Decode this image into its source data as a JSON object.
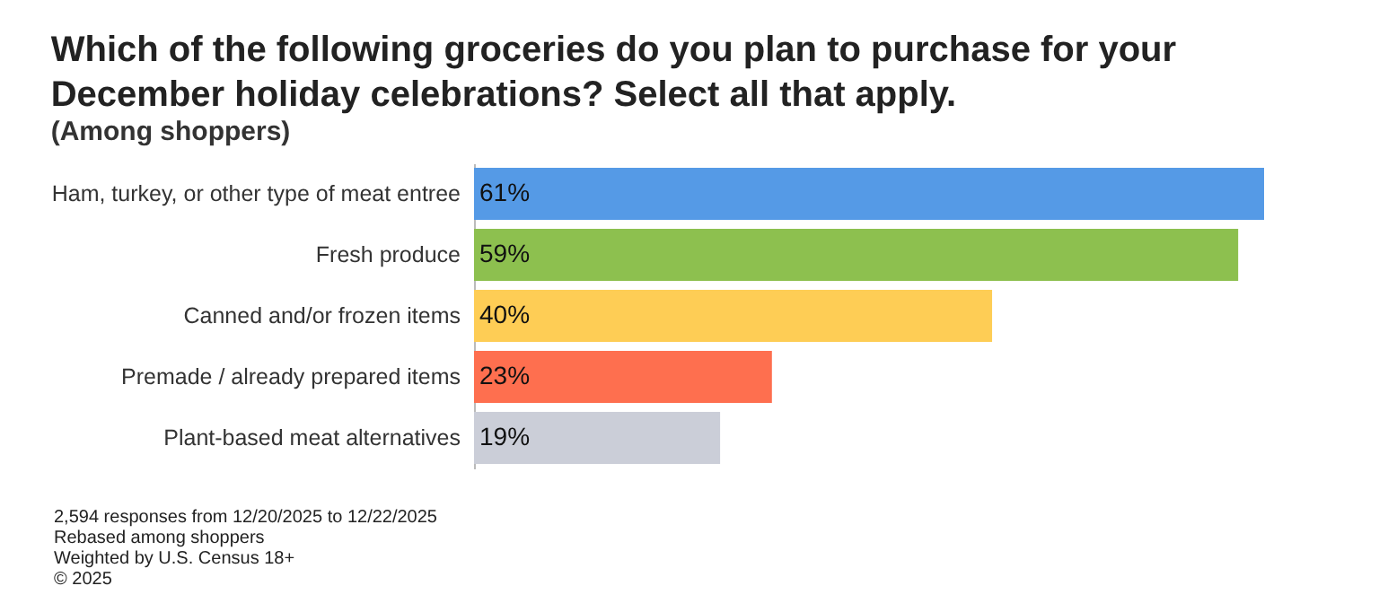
{
  "chart_data": {
    "type": "bar",
    "orientation": "horizontal",
    "title": "Which of the following groceries do you plan to purchase for your December holiday celebrations? Select all that apply.",
    "subtitle": "(Among shoppers)",
    "categories": [
      "Ham, turkey, or other type of meat entree",
      "Fresh produce",
      "Canned and/or frozen items",
      "Premade / already prepared items",
      "Plant-based meat alternatives"
    ],
    "values": [
      61,
      59,
      40,
      23,
      19
    ],
    "value_labels": [
      "61%",
      "59%",
      "40%",
      "23%",
      "19%"
    ],
    "colors": [
      "#559ae6",
      "#8dc04f",
      "#fecd55",
      "#fe6f4f",
      "#cbced8"
    ],
    "grid": false,
    "annotations": [
      "2,594 responses from 12/20/2025 to 12/22/2025",
      "Rebased among shoppers",
      "Weighted by U.S. Census 18+",
      "© 2025"
    ]
  }
}
